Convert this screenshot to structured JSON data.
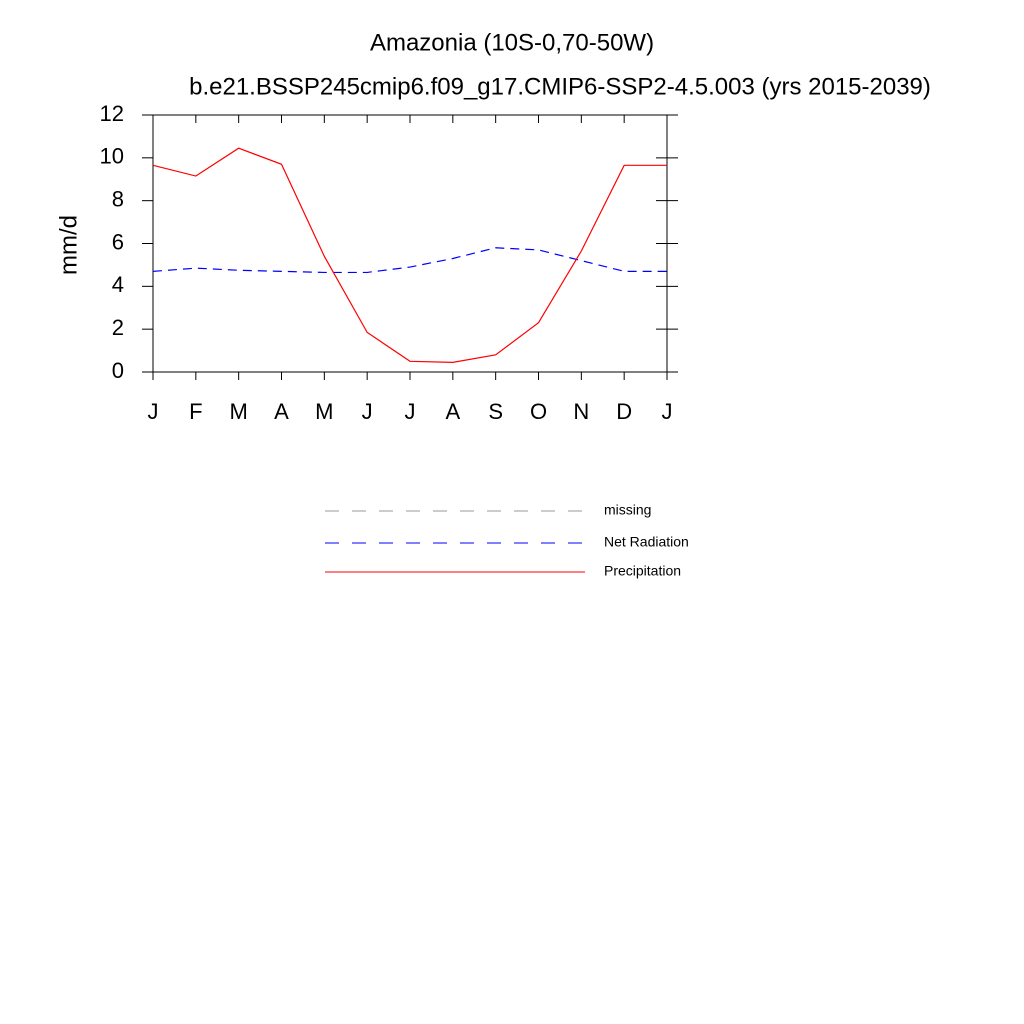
{
  "chart_data": {
    "type": "line",
    "title": "Amazonia (10S-0,70-50W)",
    "subtitle": "b.e21.BSSP245cmip6.f09_g17.CMIP6-SSP2-4.5.003 (yrs 2015-2039)",
    "y_label": "mm/d",
    "categories": [
      "J",
      "F",
      "M",
      "A",
      "M",
      "J",
      "J",
      "A",
      "S",
      "O",
      "N",
      "D",
      "J"
    ],
    "series": [
      {
        "name": "missing",
        "color": "#999999",
        "dash": true,
        "values": [
          null,
          null,
          null,
          null,
          null,
          null,
          null,
          null,
          null,
          null,
          null,
          null,
          null
        ]
      },
      {
        "name": "Net Radiation",
        "color": "#0000ff",
        "dash": true,
        "values": [
          4.7,
          4.85,
          4.75,
          4.7,
          4.65,
          4.65,
          4.9,
          5.3,
          5.8,
          5.7,
          5.2,
          4.7,
          4.7
        ]
      },
      {
        "name": "Precipitation",
        "color": "#ff0000",
        "dash": false,
        "values": [
          9.65,
          9.15,
          10.45,
          9.7,
          5.4,
          1.85,
          0.5,
          0.45,
          0.8,
          2.3,
          5.65,
          9.65,
          9.65
        ]
      }
    ],
    "ylim": [
      0,
      12
    ],
    "yticks": [
      0,
      2,
      4,
      6,
      8,
      10,
      12
    ]
  }
}
